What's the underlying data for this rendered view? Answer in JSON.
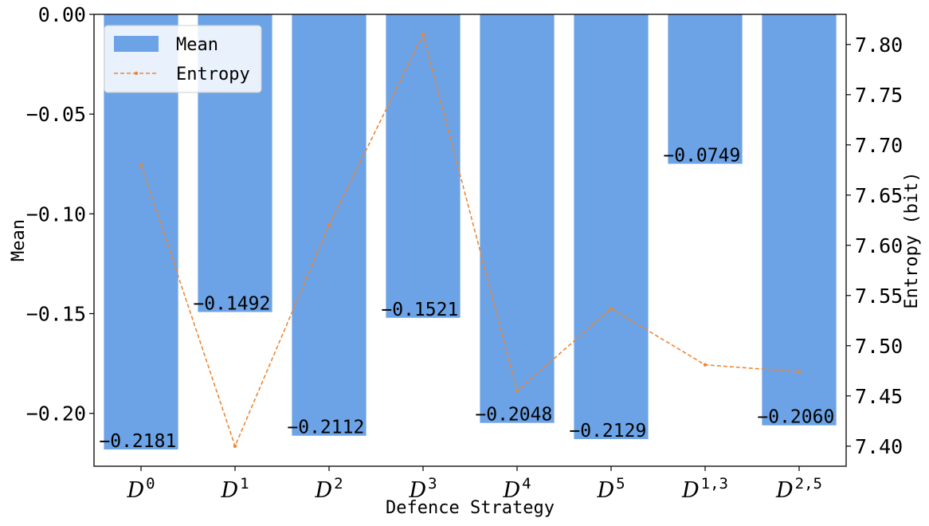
{
  "chart_data": {
    "type": "bar",
    "xlabel": "Defence Strategy",
    "ylabel": "Mean",
    "y2label": "Entropy (bit)",
    "categories": [
      {
        "base": "D",
        "sup": "0"
      },
      {
        "base": "D",
        "sup": "1"
      },
      {
        "base": "D",
        "sup": "2"
      },
      {
        "base": "D",
        "sup": "3"
      },
      {
        "base": "D",
        "sup": "4"
      },
      {
        "base": "D",
        "sup": "5"
      },
      {
        "base": "D",
        "sup": "1,3"
      },
      {
        "base": "D",
        "sup": "2,5"
      }
    ],
    "series": [
      {
        "name": "Mean",
        "kind": "bar",
        "axis": "left",
        "color": "#6ca3e6",
        "values": [
          -0.2181,
          -0.1492,
          -0.2112,
          -0.1521,
          -0.2048,
          -0.2129,
          -0.0749,
          -0.206
        ],
        "labels": [
          "−0.2181",
          "−0.1492",
          "−0.2112",
          "−0.1521",
          "−0.2048",
          "−0.2129",
          "−0.0749",
          "−0.2060"
        ]
      },
      {
        "name": "Entropy",
        "kind": "line",
        "axis": "right",
        "color": "#ee8633",
        "line_style": "dashed",
        "values": [
          7.68,
          7.4,
          7.62,
          7.81,
          7.455,
          7.537,
          7.481,
          7.474
        ]
      }
    ],
    "ylim": [
      -0.2265,
      0.0
    ],
    "y2lim": [
      7.38,
      7.83
    ],
    "yticks": [
      {
        "value": 0.0,
        "label": "0.00"
      },
      {
        "value": -0.05,
        "label": "−0.05"
      },
      {
        "value": -0.1,
        "label": "−0.10"
      },
      {
        "value": -0.15,
        "label": "−0.15"
      },
      {
        "value": -0.2,
        "label": "−0.20"
      }
    ],
    "y2ticks": [
      {
        "value": 7.4,
        "label": "7.40"
      },
      {
        "value": 7.45,
        "label": "7.45"
      },
      {
        "value": 7.5,
        "label": "7.50"
      },
      {
        "value": 7.55,
        "label": "7.55"
      },
      {
        "value": 7.6,
        "label": "7.60"
      },
      {
        "value": 7.65,
        "label": "7.65"
      },
      {
        "value": 7.7,
        "label": "7.70"
      },
      {
        "value": 7.75,
        "label": "7.75"
      },
      {
        "value": 7.8,
        "label": "7.80"
      }
    ],
    "grid": false,
    "legend_position": "top-left"
  }
}
